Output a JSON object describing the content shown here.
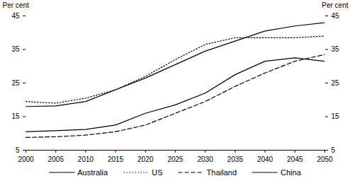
{
  "chart_data": {
    "type": "line",
    "ylabel": "Per cent",
    "y2label": "Per cent",
    "x": [
      2000,
      2005,
      2010,
      2015,
      2020,
      2025,
      2030,
      2035,
      2040,
      2045,
      2050
    ],
    "xlim": [
      2000,
      2050
    ],
    "xticks": [
      2000,
      2005,
      2010,
      2015,
      2020,
      2025,
      2030,
      2035,
      2040,
      2045,
      2050
    ],
    "ylim": [
      5,
      45
    ],
    "yticks": [
      5,
      15,
      25,
      35,
      45
    ],
    "y2lim": [
      5,
      45
    ],
    "y2ticks": [
      5,
      15,
      25,
      35,
      45
    ],
    "grid": false,
    "legend": "bottom",
    "series": [
      {
        "name": "Australia",
        "color": "#000000",
        "line_style": "solid",
        "values": [
          18,
          18.2,
          19.5,
          23,
          26.5,
          30.5,
          34.5,
          37.5,
          40.5,
          42,
          43
        ]
      },
      {
        "name": "US",
        "color": "#000000",
        "line_style": "dotted",
        "values": [
          19.5,
          19,
          20.5,
          23,
          27,
          32,
          36.5,
          38.5,
          38.5,
          38.5,
          39
        ]
      },
      {
        "name": "Thailand",
        "color": "#000000",
        "line_style": "dashed",
        "values": [
          8.8,
          9,
          9.5,
          10.5,
          12.5,
          16,
          19.5,
          24,
          28,
          31.5,
          33.5
        ]
      },
      {
        "name": "China",
        "color": "#000000",
        "line_style": "solid",
        "values": [
          10.5,
          10.8,
          11.2,
          12.5,
          16,
          18.5,
          22,
          27.5,
          31.5,
          32.5,
          31.5
        ]
      }
    ]
  }
}
